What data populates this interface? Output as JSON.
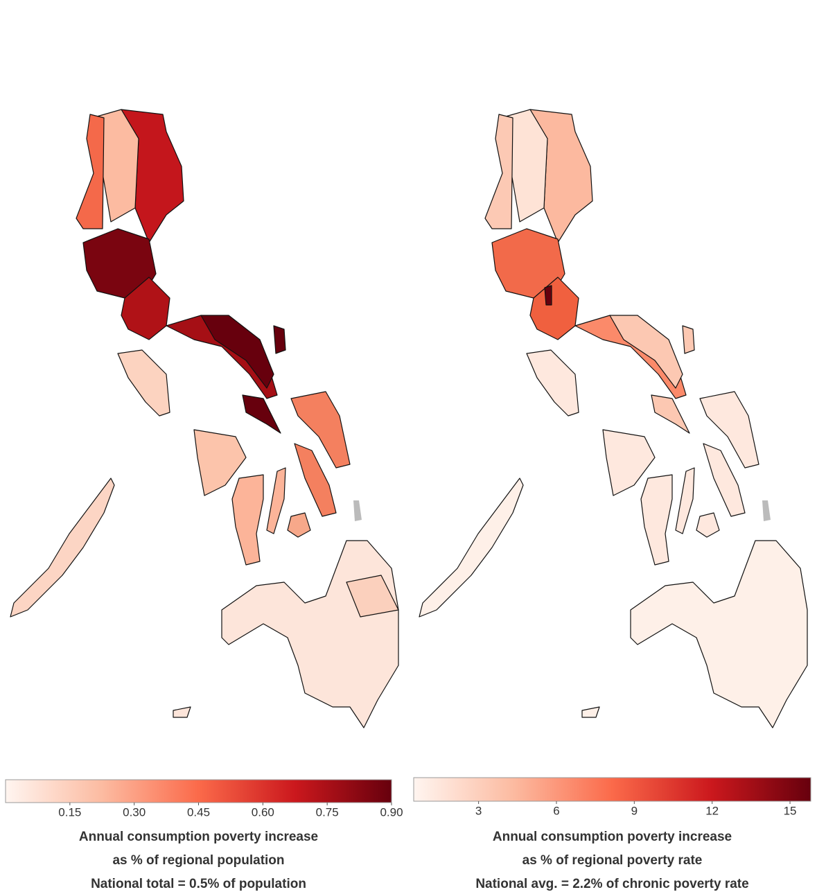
{
  "maps": [
    {
      "colorbar": {
        "range": [
          0,
          0.9
        ],
        "ticks": [
          0.15,
          {
            "value": 0.3,
            "label": "0.30"
          },
          0.45,
          {
            "value": 0.6,
            "label": "0.60"
          },
          0.75,
          {
            "value": 0.9,
            "label": "0.90"
          }
        ]
      },
      "caption": [
        "Annual consumption poverty increase",
        "as % of regional population",
        "National total = 0.5% of population"
      ]
    },
    {
      "colorbar": {
        "range": [
          0.5,
          15.8
        ],
        "ticks": [
          3,
          6,
          9,
          12,
          15
        ]
      },
      "caption": [
        "Annual consumption poverty increase",
        "as % of regional poverty rate",
        "National avg. = 2.2% of chronic poverty rate"
      ]
    }
  ]
}
